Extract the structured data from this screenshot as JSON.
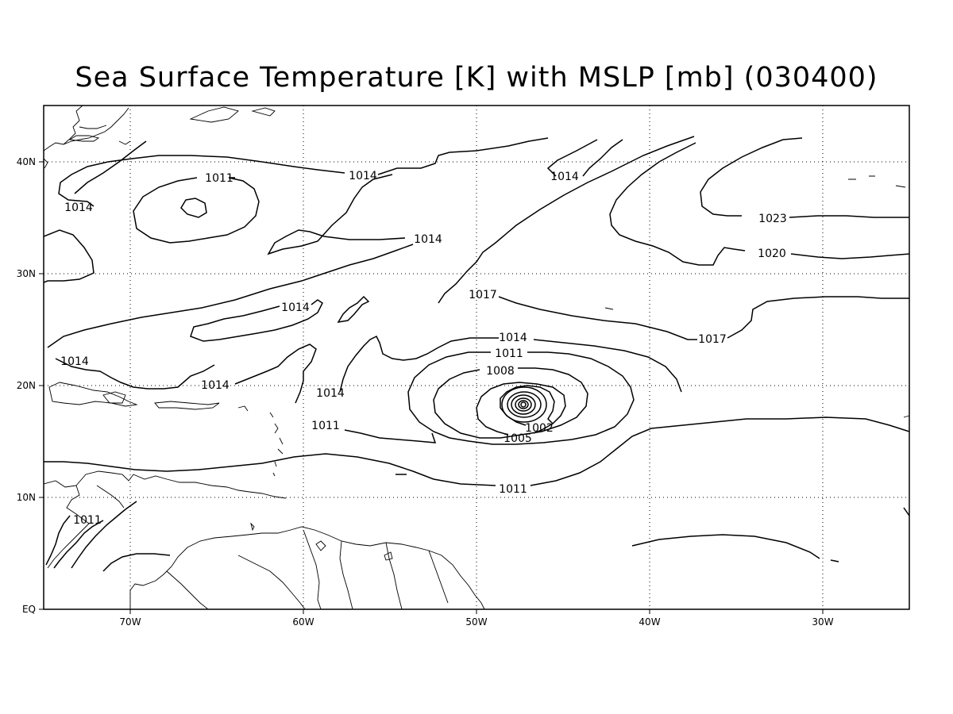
{
  "title": "Sea Surface Temperature [K] with MSLP [mb] (030400)",
  "axes": {
    "x_ticks": [
      "70W",
      "60W",
      "50W",
      "40W",
      "30W"
    ],
    "y_ticks": [
      "EQ",
      "10N",
      "20N",
      "30N",
      "40N"
    ]
  },
  "contour_labels": {
    "l1011_nw_top": "1011",
    "l1014_nw_left": "1014",
    "l1014_north_mid": "1014",
    "l1014_north_right": "1014",
    "l1014_mid_band": "1014",
    "l1023": "1023",
    "l1020": "1020",
    "l1017_mid": "1017",
    "l1014_mid_small": "1014",
    "l1014_west": "1014",
    "l1014_carib": "1014",
    "l1014_lesser": "1014",
    "l1017_east": "1017",
    "l1014_storm": "1014",
    "l1011_storm": "1011",
    "l1008": "1008",
    "l1011_west": "1011",
    "l1002": "1002",
    "l1005": "1005",
    "l1011_south": "1011",
    "l1011_sa": "1011"
  },
  "colors": {
    "line": "#000000",
    "background": "#ffffff"
  }
}
